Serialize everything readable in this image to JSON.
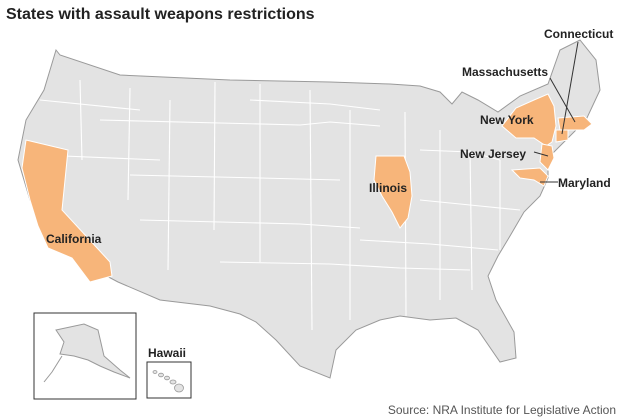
{
  "map": {
    "title": "States with assault weapons restrictions",
    "source": "Source: NRA Institute for Legislative Action",
    "highlight_color": "#f7b57a",
    "base_color": "#e3e3e3",
    "border_color": "#ffffff",
    "outline_color": "#9a9a9a",
    "states_with_restrictions": [
      {
        "id": "california",
        "label": "California"
      },
      {
        "id": "illinois",
        "label": "Illinois"
      },
      {
        "id": "new-york",
        "label": "New York"
      },
      {
        "id": "new-jersey",
        "label": "New Jersey"
      },
      {
        "id": "maryland",
        "label": "Maryland"
      },
      {
        "id": "massachusetts",
        "label": "Massachusetts"
      },
      {
        "id": "connecticut",
        "label": "Connecticut"
      }
    ],
    "inset_hawaii_label": "Hawaii"
  }
}
